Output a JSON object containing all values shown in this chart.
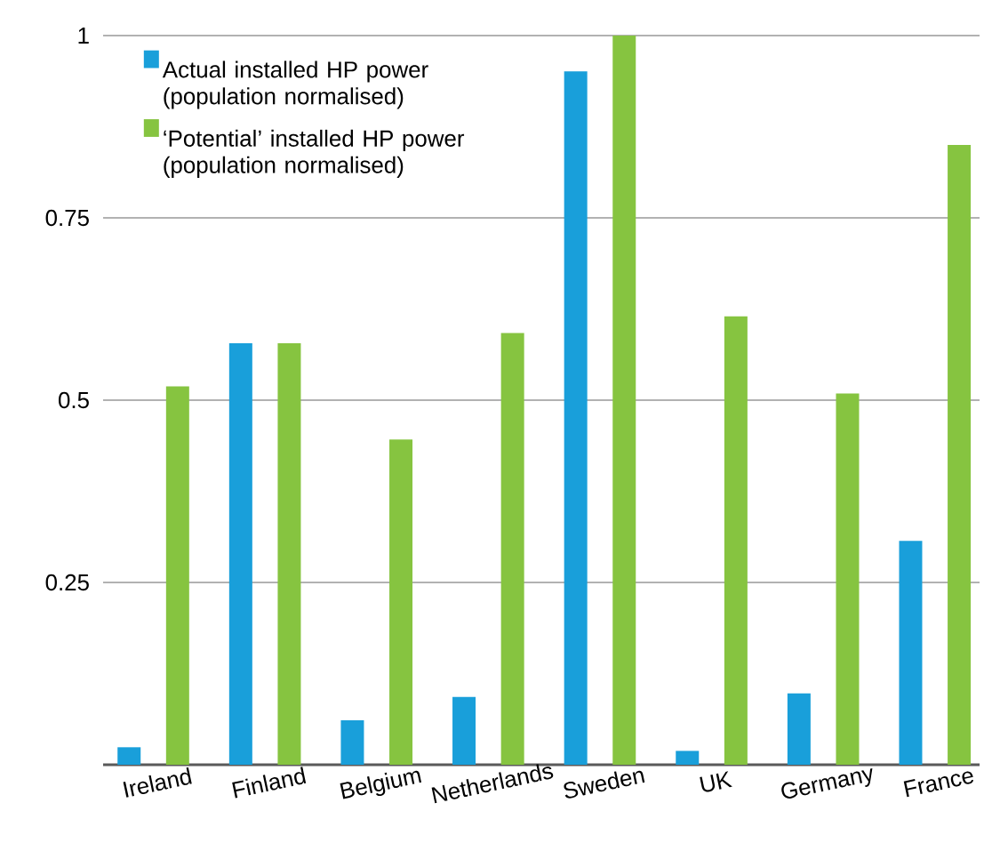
{
  "chart_data": {
    "type": "bar",
    "categories": [
      "Ireland",
      "Finland",
      "Belgium",
      "Netherlands",
      "Sweden",
      "UK",
      "Germany",
      "France"
    ],
    "series": [
      {
        "name": "Actual installed HP power (population normalised)",
        "color": "#199fda",
        "values": [
          0.024,
          0.578,
          0.061,
          0.093,
          0.951,
          0.019,
          0.098,
          0.307
        ]
      },
      {
        "name": "‘Potential’ installed HP power (population normalised)",
        "color": "#86c440",
        "values": [
          0.519,
          0.578,
          0.446,
          0.592,
          1.0,
          0.615,
          0.509,
          0.85
        ]
      }
    ],
    "ylim": [
      0,
      1
    ],
    "yticks": [
      0.25,
      0.5,
      0.75,
      1
    ],
    "grid": "y",
    "legend": "top left"
  }
}
